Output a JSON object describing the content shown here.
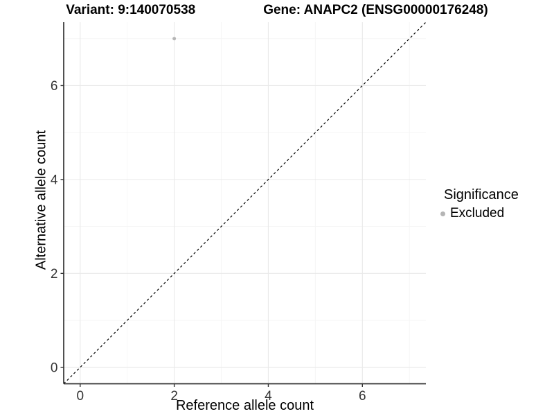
{
  "header": {
    "variant_title": "Variant: 9:140070538",
    "gene_title": "Gene: ANAPC2 (ENSG00000176248)"
  },
  "chart_data": {
    "type": "scatter",
    "title": "Variant: 9:140070538   Gene: ANAPC2 (ENSG00000176248)",
    "xlabel": "Reference allele count",
    "ylabel": "Alternative allele count",
    "xlim": [
      -0.35,
      7.35
    ],
    "ylim": [
      -0.35,
      7.35
    ],
    "x_ticks": [
      0,
      2,
      4,
      6
    ],
    "y_ticks": [
      0,
      2,
      4,
      6
    ],
    "x_minor_ticks": [
      1,
      3,
      5,
      7
    ],
    "y_minor_ticks": [
      1,
      3,
      5,
      7
    ],
    "grid": true,
    "points": [
      {
        "x": 2,
        "y": 7,
        "significance": "Excluded"
      }
    ],
    "reference_line": {
      "name": "identity-line",
      "style": "dashed",
      "from": [
        -0.35,
        -0.35
      ],
      "to": [
        7.35,
        7.35
      ]
    },
    "legend": {
      "title": "Significance",
      "position": "right",
      "entries": [
        {
          "label": "Excluded",
          "color": "#b5b5b5"
        }
      ]
    }
  },
  "colors": {
    "background": "#ffffff",
    "point": "#b5b5b5",
    "grid_major": "#e9e9e9",
    "grid_minor": "#f5f5f5",
    "axis_line": "#333333",
    "tick_text": "#333333",
    "reference_line": "#000000"
  }
}
